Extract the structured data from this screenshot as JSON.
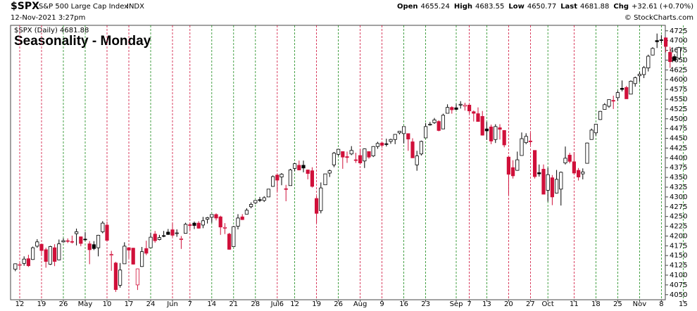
{
  "chart_data": {
    "type": "candlestick",
    "symbol": "$SPX",
    "description": "S&P 500 Large Cap Index",
    "exchange": "INDX",
    "timestamp": "12-Nov-2021 3:27pm",
    "quote": [
      {
        "label": "Open",
        "value": 4655.24
      },
      {
        "label": "High",
        "value": 4683.55
      },
      {
        "label": "Low",
        "value": 4650.77
      },
      {
        "label": "Last",
        "value": 4681.88
      },
      {
        "label": "Chg",
        "value": "+32.61"
      }
    ],
    "change_pct": "(+0.70%)",
    "credit": "© StockCharts.com",
    "legend": "$SPX (Daily) 4681.88",
    "title": "Seasonality - Monday",
    "ylim": [
      4037,
      4739
    ],
    "yticks": [
      4050,
      4075,
      4100,
      4125,
      4150,
      4175,
      4200,
      4225,
      4250,
      4275,
      4300,
      4325,
      4350,
      4375,
      4400,
      4425,
      4450,
      4475,
      4500,
      4525,
      4550,
      4575,
      4600,
      4625,
      4650,
      4675,
      4700,
      4725
    ],
    "categories": [
      null,
      "12",
      null,
      null,
      null,
      null,
      "19",
      null,
      null,
      null,
      null,
      "26",
      null,
      null,
      null,
      null,
      "May",
      null,
      null,
      null,
      null,
      "10",
      null,
      null,
      null,
      null,
      "17",
      null,
      null,
      null,
      null,
      "24",
      null,
      null,
      null,
      null,
      "Jun",
      null,
      null,
      null,
      "7",
      null,
      null,
      null,
      null,
      "14",
      null,
      null,
      null,
      null,
      "21",
      null,
      null,
      null,
      null,
      "28",
      null,
      null,
      null,
      null,
      "Jul6",
      null,
      null,
      null,
      "12",
      null,
      null,
      null,
      null,
      "19",
      null,
      null,
      null,
      null,
      "26",
      null,
      null,
      null,
      null,
      "Aug",
      null,
      null,
      null,
      null,
      "9",
      null,
      null,
      null,
      null,
      "16",
      null,
      null,
      null,
      null,
      "23",
      null,
      null,
      null,
      null,
      null,
      null,
      "Sep",
      null,
      null,
      "7",
      null,
      null,
      null,
      "13",
      null,
      null,
      null,
      null,
      "20",
      null,
      null,
      null,
      null,
      "27",
      null,
      null,
      null,
      "Oct",
      null,
      null,
      null,
      null,
      null,
      "11",
      null,
      null,
      null,
      null,
      "18",
      null,
      null,
      null,
      null,
      "25",
      null,
      null,
      null,
      null,
      "Nov",
      null,
      null,
      null,
      null,
      "8",
      null,
      null,
      null,
      null,
      "15"
    ],
    "ohlc": [
      [
        4115,
        4130,
        4110,
        4129
      ],
      [
        4125,
        4131,
        4114,
        4127
      ],
      [
        4130,
        4148,
        4124,
        4141
      ],
      [
        4142,
        4152,
        4121,
        4124
      ],
      [
        4140,
        4173,
        4139,
        4170
      ],
      [
        4174,
        4192,
        4170,
        4185
      ],
      [
        4179,
        4180,
        4150,
        4163
      ],
      [
        4165,
        4170,
        4119,
        4135
      ],
      [
        4128,
        4175,
        4126,
        4173
      ],
      [
        4170,
        4179,
        4123,
        4135
      ],
      [
        4139,
        4191,
        4138,
        4180
      ],
      [
        4185,
        4194,
        4183,
        4188
      ],
      [
        4188,
        4194,
        4182,
        4187
      ],
      [
        4186,
        4201,
        4181,
        4186
      ],
      [
        4206,
        4219,
        4176,
        4211
      ],
      [
        4198,
        4199,
        4174,
        4181
      ],
      [
        4192,
        4210,
        4188,
        4192
      ],
      [
        4180,
        4187,
        4128,
        4165
      ],
      [
        4178,
        4187,
        4164,
        4168
      ],
      [
        4170,
        4203,
        4148,
        4202
      ],
      [
        4211,
        4238,
        4207,
        4233
      ],
      [
        4228,
        4237,
        4188,
        4189
      ],
      [
        4151,
        4162,
        4111,
        4153
      ],
      [
        4131,
        4134,
        4057,
        4063
      ],
      [
        4074,
        4131,
        4068,
        4113
      ],
      [
        4129,
        4184,
        4129,
        4174
      ],
      [
        4170,
        4171,
        4143,
        4164
      ],
      [
        4169,
        4170,
        4127,
        4128
      ],
      [
        4075,
        4117,
        4062,
        4116
      ],
      [
        4122,
        4172,
        4121,
        4160
      ],
      [
        4168,
        4188,
        4151,
        4156
      ],
      [
        4170,
        4209,
        4170,
        4197
      ],
      [
        4205,
        4213,
        4183,
        4188
      ],
      [
        4191,
        4203,
        4189,
        4196
      ],
      [
        4201,
        4213,
        4197,
        4200
      ],
      [
        4210,
        4218,
        4203,
        4204
      ],
      [
        4216,
        4235,
        4198,
        4202
      ],
      [
        4207,
        4217,
        4198,
        4208
      ],
      [
        4191,
        4200,
        4167,
        4193
      ],
      [
        4207,
        4234,
        4206,
        4230
      ],
      [
        4229,
        4233,
        4215,
        4227
      ],
      [
        4233,
        4237,
        4218,
        4227
      ],
      [
        4233,
        4238,
        4219,
        4220
      ],
      [
        4228,
        4249,
        4220,
        4239
      ],
      [
        4243,
        4249,
        4232,
        4247
      ],
      [
        4248,
        4255,
        4234,
        4255
      ],
      [
        4255,
        4258,
        4240,
        4246
      ],
      [
        4249,
        4252,
        4203,
        4223
      ],
      [
        4220,
        4233,
        4205,
        4222
      ],
      [
        4205,
        4208,
        4165,
        4166
      ],
      [
        4173,
        4226,
        4173,
        4224
      ],
      [
        4225,
        4256,
        4217,
        4246
      ],
      [
        4249,
        4256,
        4241,
        4242
      ],
      [
        4256,
        4271,
        4256,
        4266
      ],
      [
        4275,
        4286,
        4271,
        4281
      ],
      [
        4285,
        4292,
        4282,
        4291
      ],
      [
        4293,
        4300,
        4287,
        4291
      ],
      [
        4291,
        4302,
        4287,
        4298
      ],
      [
        4300,
        4320,
        4300,
        4320
      ],
      [
        4327,
        4355,
        4326,
        4352
      ],
      [
        4356,
        4358,
        4314,
        4343
      ],
      [
        4351,
        4361,
        4330,
        4358
      ],
      [
        4321,
        4331,
        4289,
        4320
      ],
      [
        4329,
        4372,
        4329,
        4369
      ],
      [
        4373,
        4387,
        4366,
        4385
      ],
      [
        4381,
        4393,
        4368,
        4369
      ],
      [
        4381,
        4393,
        4363,
        4374
      ],
      [
        4369,
        4370,
        4345,
        4360
      ],
      [
        4367,
        4376,
        4324,
        4327
      ],
      [
        4296,
        4302,
        4233,
        4258
      ],
      [
        4265,
        4337,
        4258,
        4323
      ],
      [
        4331,
        4359,
        4331,
        4359
      ],
      [
        4361,
        4370,
        4351,
        4367
      ],
      [
        4382,
        4415,
        4376,
        4412
      ],
      [
        4409,
        4422,
        4405,
        4422
      ],
      [
        4416,
        4416,
        4372,
        4402
      ],
      [
        4403,
        4416,
        4387,
        4401
      ],
      [
        4410,
        4430,
        4407,
        4419
      ],
      [
        4395,
        4413,
        4387,
        4395
      ],
      [
        4406,
        4422,
        4384,
        4387
      ],
      [
        4392,
        4424,
        4374,
        4423
      ],
      [
        4416,
        4416,
        4398,
        4402
      ],
      [
        4405,
        4430,
        4402,
        4429
      ],
      [
        4429,
        4441,
        4423,
        4437
      ],
      [
        4438,
        4440,
        4426,
        4432
      ],
      [
        4436,
        4449,
        4429,
        4436
      ],
      [
        4442,
        4449,
        4436,
        4447
      ],
      [
        4447,
        4461,
        4435,
        4460
      ],
      [
        4464,
        4468,
        4460,
        4468
      ],
      [
        4462,
        4480,
        4437,
        4480
      ],
      [
        4462,
        4462,
        4418,
        4448
      ],
      [
        4441,
        4450,
        4400,
        4400
      ],
      [
        4382,
        4418,
        4367,
        4405
      ],
      [
        4410,
        4444,
        4406,
        4442
      ],
      [
        4451,
        4489,
        4451,
        4480
      ],
      [
        4484,
        4492,
        4482,
        4486
      ],
      [
        4490,
        4502,
        4487,
        4497
      ],
      [
        4493,
        4496,
        4468,
        4470
      ],
      [
        4474,
        4513,
        4474,
        4509
      ],
      [
        4514,
        4537,
        4514,
        4529
      ],
      [
        4529,
        4532,
        4513,
        4523
      ],
      [
        4528,
        4538,
        4522,
        4524
      ],
      [
        4535,
        4545,
        4526,
        4537
      ],
      [
        4532,
        4541,
        4521,
        4535
      ],
      [
        4535,
        4535,
        4513,
        4520
      ],
      [
        4518,
        4521,
        4493,
        4514
      ],
      [
        4513,
        4529,
        4493,
        4493
      ],
      [
        4506,
        4520,
        4457,
        4458
      ],
      [
        4474,
        4492,
        4446,
        4469
      ],
      [
        4479,
        4485,
        4435,
        4443
      ],
      [
        4447,
        4486,
        4438,
        4480
      ],
      [
        4477,
        4486,
        4447,
        4473
      ],
      [
        4470,
        4471,
        4427,
        4433
      ],
      [
        4402,
        4402,
        4305,
        4358
      ],
      [
        4375,
        4394,
        4347,
        4354
      ],
      [
        4368,
        4416,
        4367,
        4395
      ],
      [
        4406,
        4465,
        4406,
        4449
      ],
      [
        4439,
        4463,
        4435,
        4455
      ],
      [
        4443,
        4464,
        4433,
        4443
      ],
      [
        4419,
        4419,
        4347,
        4352
      ],
      [
        4362,
        4383,
        4352,
        4359
      ],
      [
        4371,
        4383,
        4307,
        4307
      ],
      [
        4317,
        4375,
        4288,
        4357
      ],
      [
        4349,
        4356,
        4279,
        4300
      ],
      [
        4310,
        4369,
        4309,
        4345
      ],
      [
        4320,
        4365,
        4278,
        4363
      ],
      [
        4387,
        4429,
        4383,
        4399
      ],
      [
        4407,
        4413,
        4386,
        4391
      ],
      [
        4390,
        4415,
        4360,
        4361
      ],
      [
        4368,
        4374,
        4342,
        4351
      ],
      [
        4359,
        4373,
        4345,
        4364
      ],
      [
        4386,
        4439,
        4386,
        4438
      ],
      [
        4447,
        4475,
        4447,
        4471
      ],
      [
        4464,
        4487,
        4457,
        4486
      ],
      [
        4498,
        4520,
        4497,
        4519
      ],
      [
        4524,
        4540,
        4524,
        4536
      ],
      [
        4532,
        4549,
        4528,
        4549
      ],
      [
        4547,
        4559,
        4525,
        4545
      ],
      [
        4554,
        4572,
        4546,
        4567
      ],
      [
        4578,
        4598,
        4570,
        4575
      ],
      [
        4580,
        4584,
        4551,
        4551
      ],
      [
        4563,
        4598,
        4563,
        4596
      ],
      [
        4590,
        4608,
        4582,
        4605
      ],
      [
        4610,
        4620,
        4595,
        4614
      ],
      [
        4613,
        4635,
        4604,
        4631
      ],
      [
        4630,
        4664,
        4621,
        4660
      ],
      [
        4663,
        4683,
        4662,
        4680
      ],
      [
        4700,
        4718,
        4681,
        4697
      ],
      [
        4702,
        4714,
        4694,
        4701
      ],
      [
        4707,
        4708,
        4670,
        4685
      ],
      [
        4670,
        4684,
        4630,
        4646
      ],
      [
        4659,
        4665,
        4648,
        4649
      ],
      [
        4655,
        4684,
        4651,
        4682
      ],
      null
    ],
    "up_color": "#000000",
    "down_color": "#d0103a",
    "line_up_color": "#1a8a1a",
    "line_down_color": "#d0103a",
    "title_color": "#1010d0"
  }
}
